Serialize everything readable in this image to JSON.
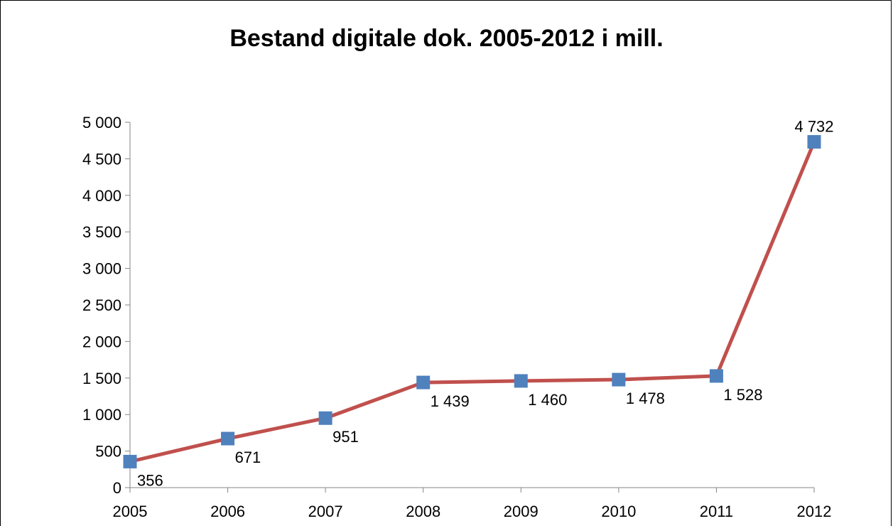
{
  "chart_data": {
    "type": "line",
    "title": "Bestand digitale dok. 2005-2012 i mill.",
    "xlabel": "",
    "ylabel": "",
    "categories": [
      "2005",
      "2006",
      "2007",
      "2008",
      "2009",
      "2010",
      "2011",
      "2012"
    ],
    "series": [
      {
        "values": [
          356,
          671,
          951,
          1439,
          1460,
          1478,
          1528,
          4732
        ],
        "data_labels": [
          "356",
          "671",
          "951",
          "1 439",
          "1 460",
          "1 478",
          "1 528",
          "4 732"
        ],
        "line_color": "#C0504D",
        "marker_color": "#4F81BD",
        "marker": "square"
      }
    ],
    "ylim": [
      0,
      5000
    ],
    "yticks": [
      0,
      500,
      1000,
      1500,
      2000,
      2500,
      3000,
      3500,
      4000,
      4500,
      5000
    ],
    "ytick_labels": [
      "0",
      "500",
      "1 000",
      "1 500",
      "2 000",
      "2 500",
      "3 000",
      "3 500",
      "4 000",
      "4 500",
      "5 000"
    ],
    "grid": false,
    "legend": "none"
  }
}
